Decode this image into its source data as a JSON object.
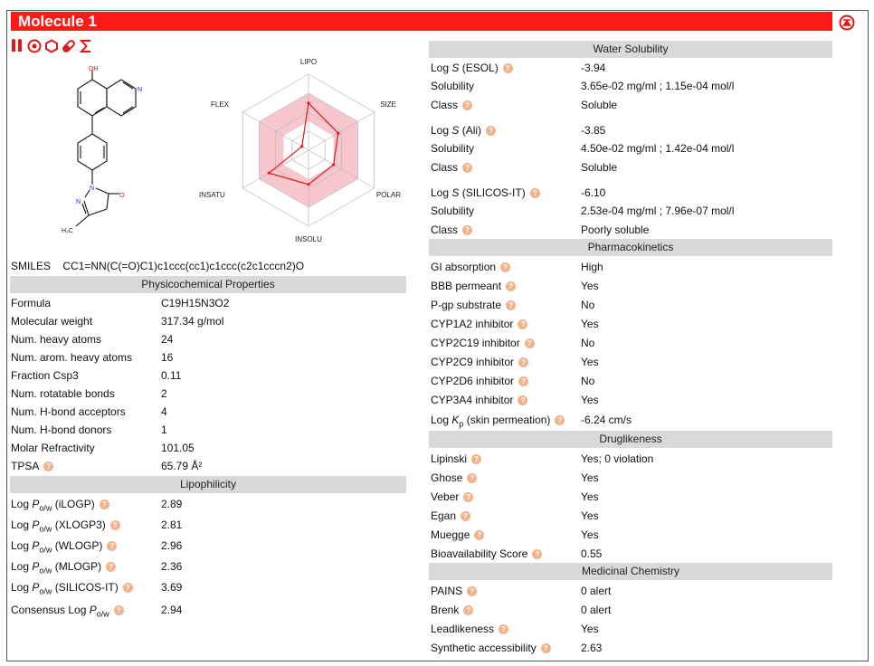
{
  "title": "Molecule 1",
  "smiles": {
    "label": "SMILES",
    "value": "CC1=NN(C(=O)C1)c1ccc(cc1)c1ccc(c2c1cccn2)O"
  },
  "icons": [
    "molecule-info-icon",
    "target-icon",
    "ring-icon",
    "pill-icon",
    "sigma-icon"
  ],
  "radar": {
    "labels": [
      "LIPO",
      "SIZE",
      "POLAR",
      "INSOLU",
      "INSATU",
      "FLEX"
    ],
    "values": [
      0.62,
      0.45,
      0.38,
      0.45,
      0.6,
      0.1
    ],
    "colors": {
      "range": "#f7c1c8",
      "line": "#e01818",
      "grid": "#bbbbbb"
    }
  },
  "physchem": {
    "header": "Physicochemical Properties",
    "rows": [
      {
        "k": "Formula",
        "v": "C19H15N3O2"
      },
      {
        "k": "Molecular weight",
        "v": "317.34 g/mol"
      },
      {
        "k": "Num. heavy atoms",
        "v": "24"
      },
      {
        "k": "Num. arom. heavy atoms",
        "v": "16"
      },
      {
        "k": "Fraction Csp3",
        "v": "0.11"
      },
      {
        "k": "Num. rotatable bonds",
        "v": "2"
      },
      {
        "k": "Num. H-bond acceptors",
        "v": "4"
      },
      {
        "k": "Num. H-bond donors",
        "v": "1"
      },
      {
        "k": "Molar Refractivity",
        "v": "101.05"
      },
      {
        "k": "TPSA",
        "v": "65.79 Å²",
        "q": true
      }
    ]
  },
  "lipo": {
    "header": "Lipophilicity",
    "log_prefix": "Log ",
    "p": "P",
    "sub": "o/w",
    "consensus_prefix": "Consensus Log ",
    "rows": [
      {
        "method": " (iLOGP)",
        "v": "2.89"
      },
      {
        "method": " (XLOGP3)",
        "v": "2.81"
      },
      {
        "method": " (WLOGP)",
        "v": "2.96"
      },
      {
        "method": " (MLOGP)",
        "v": "2.36"
      },
      {
        "method": " (SILICOS-IT)",
        "v": "3.69"
      }
    ],
    "consensus_value": "2.94"
  },
  "water": {
    "header": "Water Solubility",
    "log": "Log ",
    "s": "S",
    "groups": [
      {
        "method": " (ESOL)",
        "logs": "-3.94",
        "sol_label": "Solubility",
        "sol": "3.65e-02 mg/ml ; 1.15e-04 mol/l",
        "class_label": "Class",
        "class": "Soluble"
      },
      {
        "method": " (Ali)",
        "logs": "-3.85",
        "sol_label": "Solubility",
        "sol": "4.50e-02 mg/ml ; 1.42e-04 mol/l",
        "class_label": "Class",
        "class": "Soluble"
      },
      {
        "method": " (SILICOS-IT)",
        "logs": "-6.10",
        "sol_label": "Solubility",
        "sol": "2.53e-04 mg/ml ; 7.96e-07 mol/l",
        "class_label": "Class",
        "class": "Poorly soluble"
      }
    ]
  },
  "pk": {
    "header": "Pharmacokinetics",
    "rows": [
      {
        "k": "GI absorption",
        "v": "High"
      },
      {
        "k": "BBB permeant",
        "v": "Yes"
      },
      {
        "k": "P-gp substrate",
        "v": "No"
      },
      {
        "k": "CYP1A2 inhibitor",
        "v": "Yes"
      },
      {
        "k": "CYP2C19 inhibitor",
        "v": "No"
      },
      {
        "k": "CYP2C9 inhibitor",
        "v": "Yes"
      },
      {
        "k": "CYP2D6 inhibitor",
        "v": "No"
      },
      {
        "k": "CYP3A4 inhibitor",
        "v": "Yes"
      }
    ],
    "kp_prefix": "Log ",
    "kp_k": "K",
    "kp_sub": "p",
    "kp_suffix": " (skin permeation)",
    "kp_value": "-6.24 cm/s"
  },
  "drug": {
    "header": "Druglikeness",
    "rows": [
      {
        "k": "Lipinski",
        "v": "Yes; 0 violation"
      },
      {
        "k": "Ghose",
        "v": "Yes"
      },
      {
        "k": "Veber",
        "v": "Yes"
      },
      {
        "k": "Egan",
        "v": "Yes"
      },
      {
        "k": "Muegge",
        "v": "Yes"
      },
      {
        "k": "Bioavailability Score",
        "v": "0.55"
      }
    ]
  },
  "medchem": {
    "header": "Medicinal Chemistry",
    "rows": [
      {
        "k": "PAINS",
        "v": "0 alert"
      },
      {
        "k": "Brenk",
        "v": "0 alert"
      },
      {
        "k": "Leadlikeness",
        "v": "Yes"
      },
      {
        "k": "Synthetic accessibility",
        "v": "2.63"
      }
    ]
  },
  "structure_labels": {
    "oh": "OH",
    "n": "N",
    "n2": "N",
    "o": "O",
    "ch3": "H₃C"
  }
}
